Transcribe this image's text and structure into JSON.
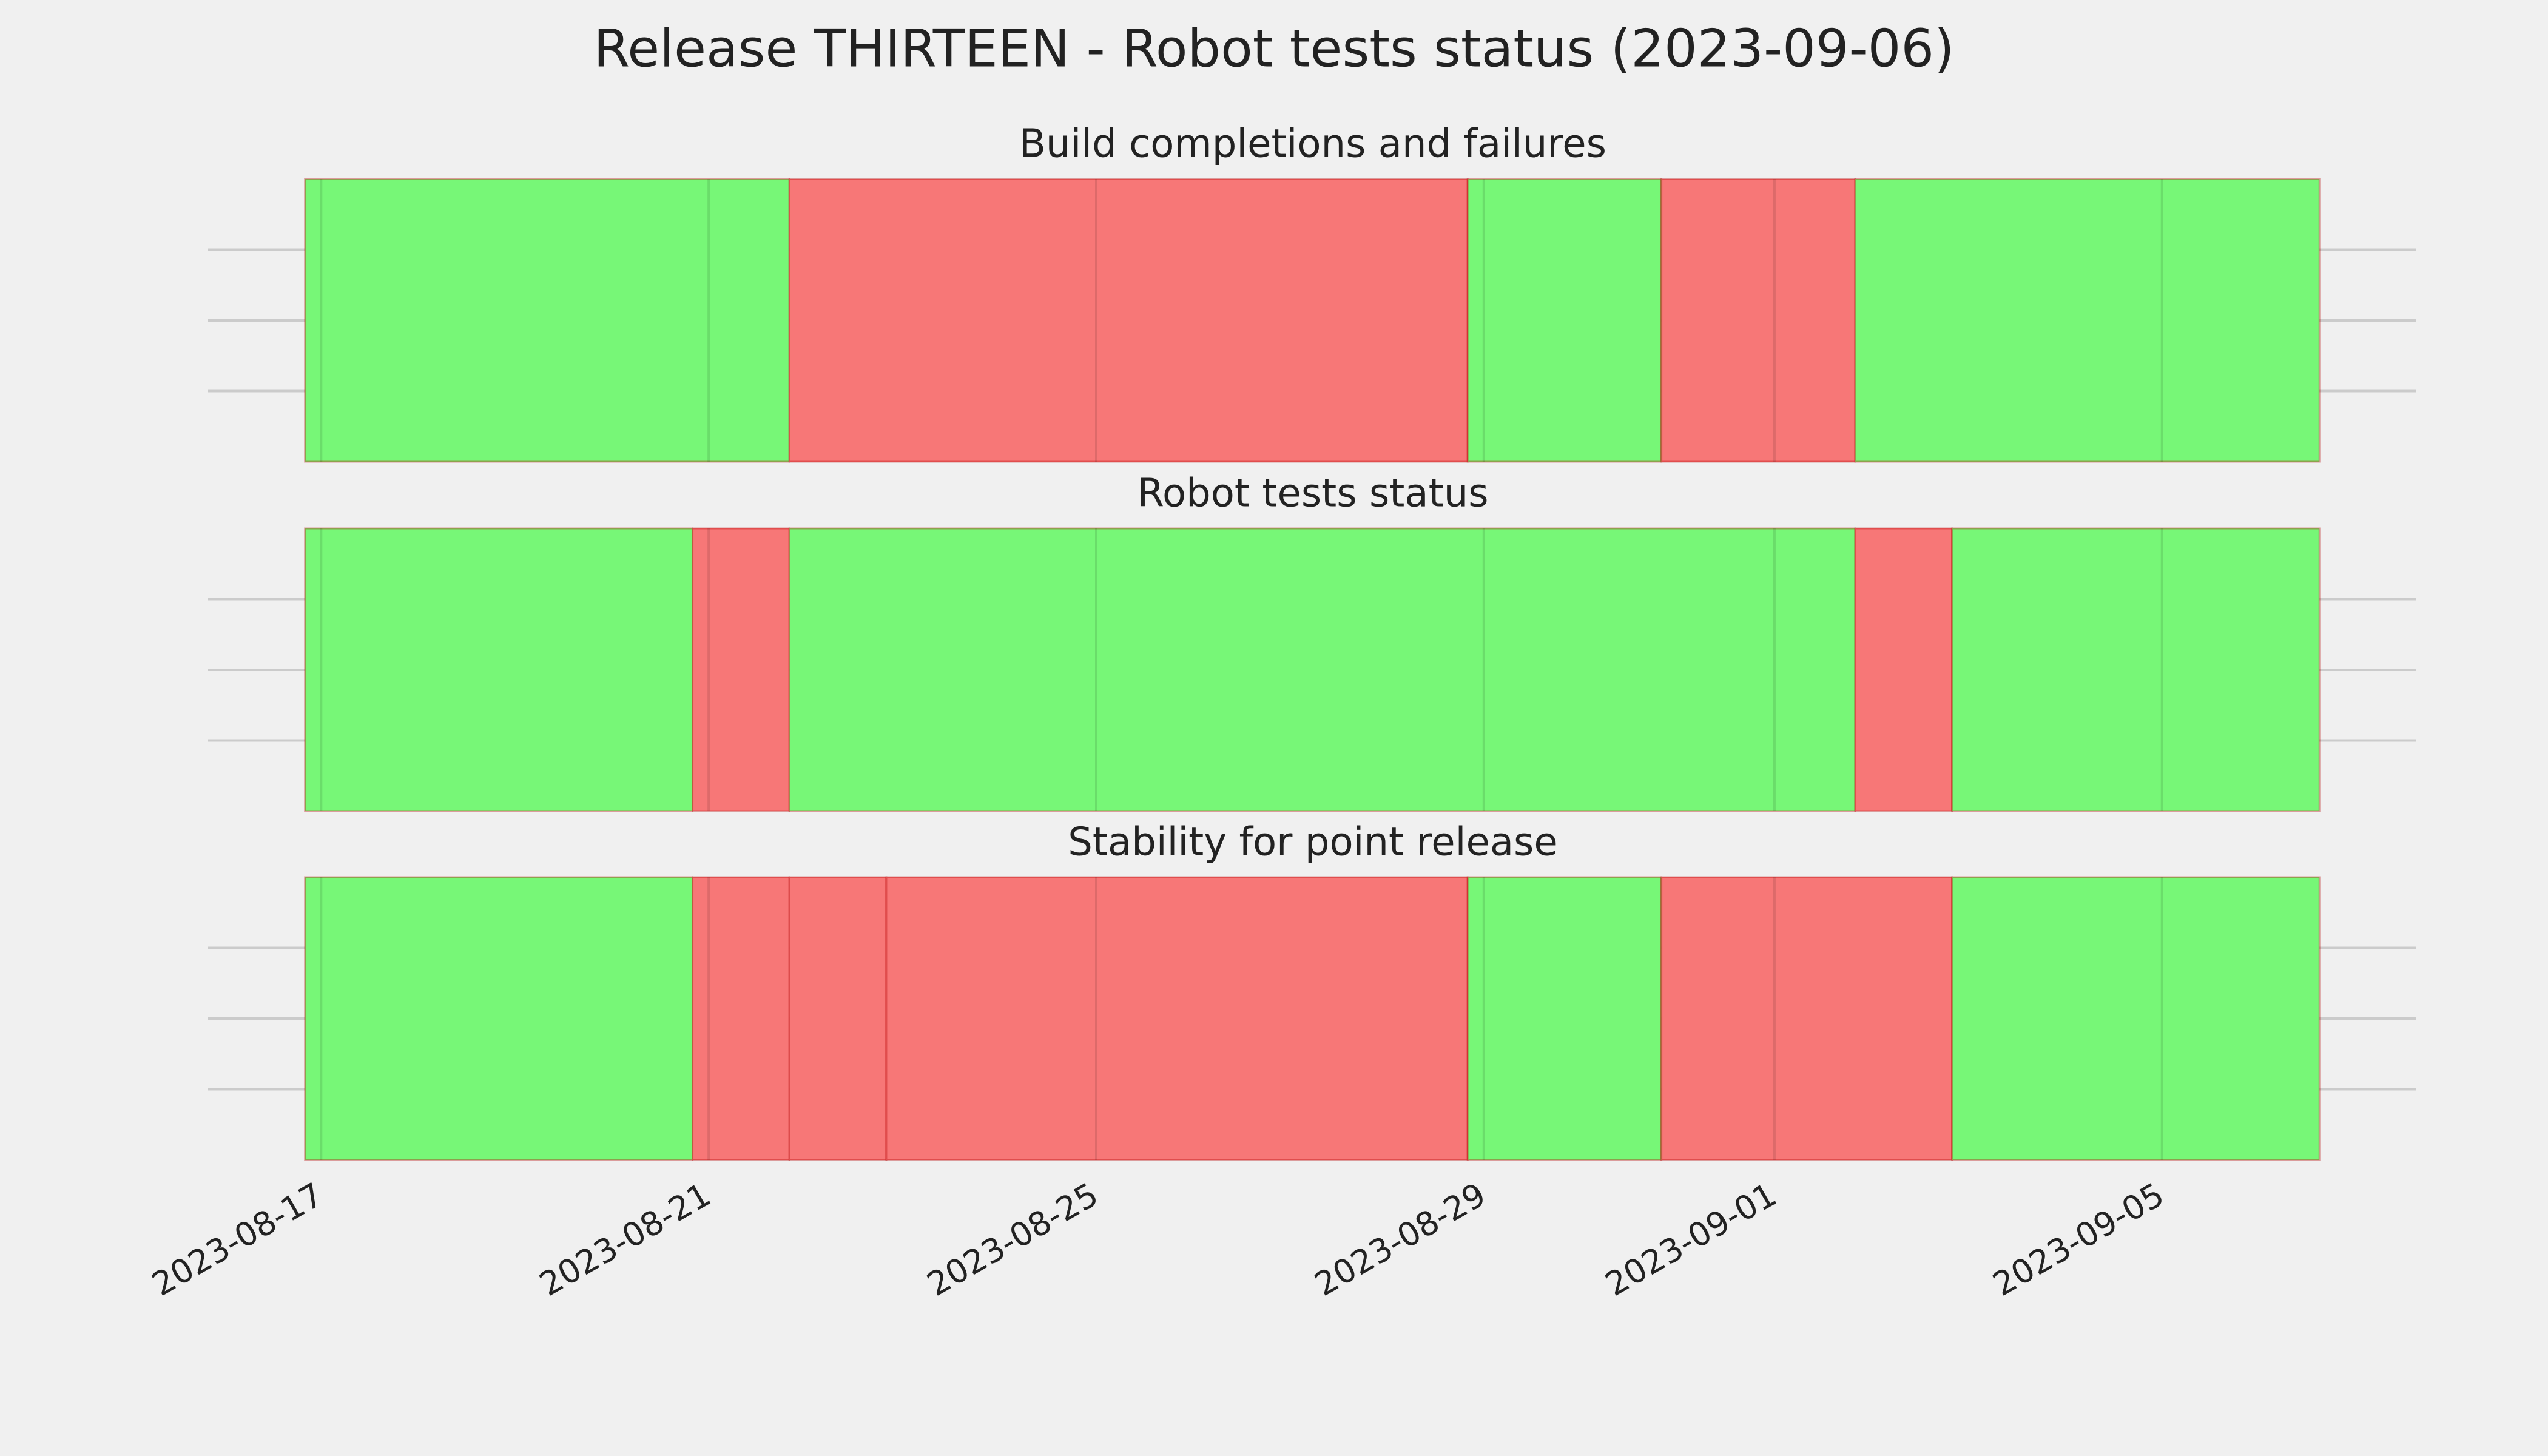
{
  "chart_data": [
    {
      "type": "timeline",
      "suptitle": "Release THIRTEEN - Robot tests status (2023-09-06)",
      "title": "Build completions and failures",
      "spans": [
        {
          "start": "2023-08-16T20:00",
          "end": "2023-08-21T20:00",
          "color": "#77f777"
        },
        {
          "start": "2023-08-21T20:00",
          "end": "2023-08-28T20:00",
          "color": "#f77777"
        },
        {
          "start": "2023-08-28T20:00",
          "end": "2023-08-30T20:00",
          "color": "#77f777"
        },
        {
          "start": "2023-08-30T20:00",
          "end": "2023-09-01T20:00",
          "color": "#f77777"
        },
        {
          "start": "2023-09-01T20:00",
          "end": "2023-09-06T15:00",
          "color": "#77f777"
        }
      ],
      "xlim": [
        "2023-08-15T20:00",
        "2023-09-07T15:00"
      ],
      "ylim": [
        0,
        1
      ],
      "yticks": [
        0.25,
        0.5,
        0.75
      ],
      "grid": true
    },
    {
      "type": "timeline",
      "title": "Robot tests status",
      "spans": [
        {
          "start": "2023-08-16T20:00",
          "end": "2023-08-20T20:00",
          "color": "#77f777"
        },
        {
          "start": "2023-08-20T20:00",
          "end": "2023-08-21T20:00",
          "color": "#f77777"
        },
        {
          "start": "2023-08-21T20:00",
          "end": "2023-09-01T20:00",
          "color": "#77f777"
        },
        {
          "start": "2023-09-01T20:00",
          "end": "2023-09-02T20:00",
          "color": "#f77777"
        },
        {
          "start": "2023-09-02T20:00",
          "end": "2023-09-06T15:00",
          "color": "#77f777"
        }
      ],
      "xlim": [
        "2023-08-15T20:00",
        "2023-09-07T15:00"
      ],
      "ylim": [
        0,
        1
      ],
      "yticks": [
        0.25,
        0.5,
        0.75
      ],
      "grid": true
    },
    {
      "type": "timeline",
      "title": "Stability for point release",
      "spans": [
        {
          "start": "2023-08-16T20:00",
          "end": "2023-08-20T20:00",
          "color": "#77f777"
        },
        {
          "start": "2023-08-20T20:00",
          "end": "2023-08-21T20:00",
          "color": "#f77777"
        },
        {
          "start": "2023-08-21T20:00",
          "end": "2023-08-22T20:00",
          "color": "#f77777"
        },
        {
          "start": "2023-08-22T20:00",
          "end": "2023-08-28T20:00",
          "color": "#f77777"
        },
        {
          "start": "2023-08-28T20:00",
          "end": "2023-08-30T20:00",
          "color": "#77f777"
        },
        {
          "start": "2023-08-30T20:00",
          "end": "2023-09-02T20:00",
          "color": "#f77777"
        },
        {
          "start": "2023-09-02T20:00",
          "end": "2023-09-06T15:00",
          "color": "#77f777"
        }
      ],
      "xlim": [
        "2023-08-15T20:00",
        "2023-09-07T15:00"
      ],
      "ylim": [
        0,
        1
      ],
      "yticks": [
        0.25,
        0.5,
        0.75
      ],
      "grid": true,
      "xticks": [
        "2023-08-17",
        "2023-08-21",
        "2023-08-25",
        "2023-08-29",
        "2023-09-01",
        "2023-09-05"
      ]
    }
  ]
}
